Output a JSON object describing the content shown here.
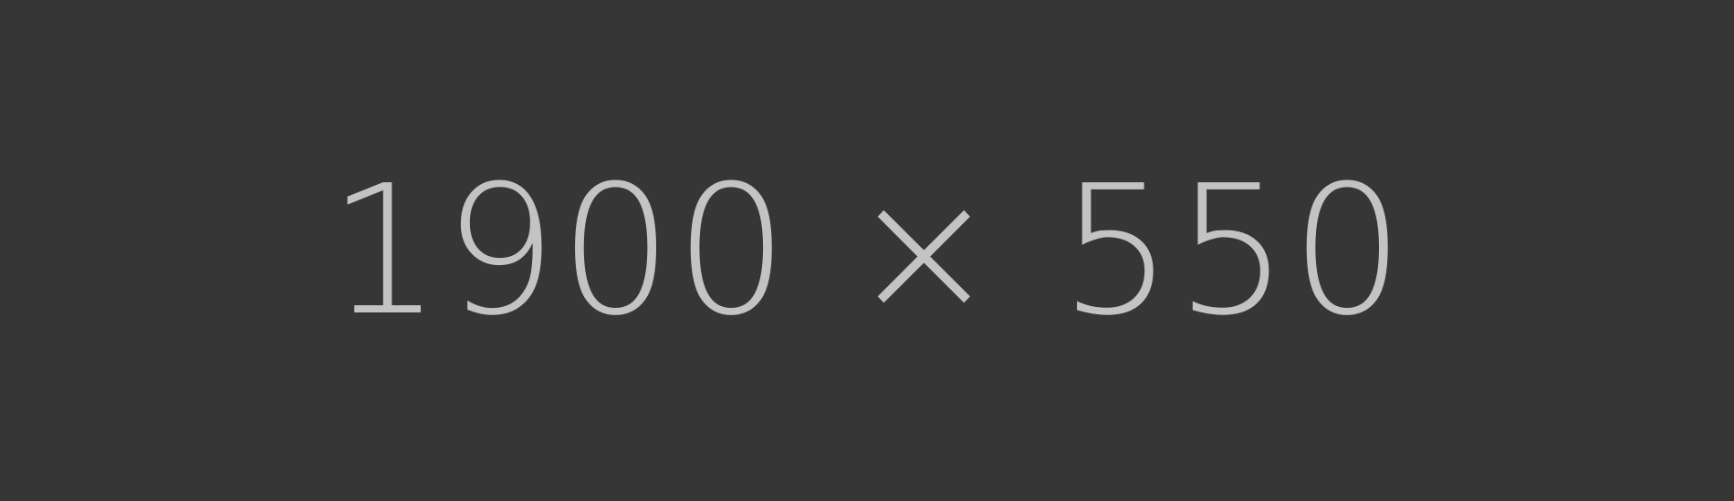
{
  "placeholder": {
    "label": "1900 × 550",
    "background_color": "#363636",
    "text_color": "#c3c3c3"
  }
}
